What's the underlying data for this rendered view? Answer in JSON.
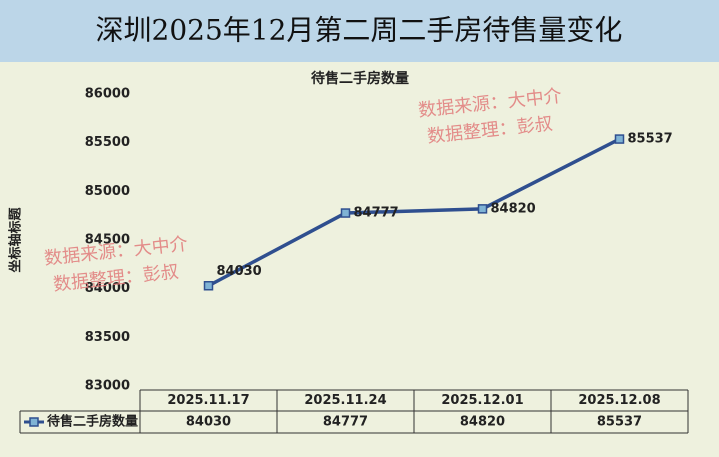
{
  "chart_data": {
    "type": "line",
    "title": "深圳2025年12月第二周二手房待售量变化",
    "chart_title": "待售二手房数量",
    "y_axis_label": "坐标轴标题",
    "categories": [
      "2025.11.17",
      "2025.11.24",
      "2025.12.01",
      "2025.12.08"
    ],
    "series": [
      {
        "name": "待售二手房数量",
        "color": "#2f4f8f",
        "marker_color": "#7fb3d5",
        "values": [
          84030,
          84777,
          84820,
          85537
        ]
      }
    ],
    "ylim": [
      83000,
      86000
    ],
    "yticks": [
      83000,
      83500,
      84000,
      84500,
      85000,
      85500,
      86000
    ],
    "grid": false,
    "annotations": [
      [
        "数据来源：大中介",
        "数据整理：彭叔"
      ],
      [
        "数据来源：大中介",
        "数据整理：彭叔"
      ]
    ]
  }
}
